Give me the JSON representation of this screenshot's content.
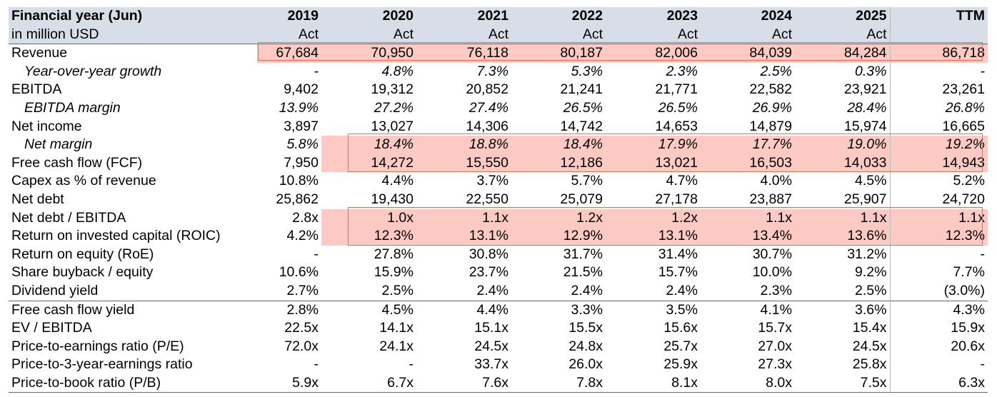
{
  "header": {
    "title": "Financial year (Jun)",
    "subtitle": "in million USD",
    "years": [
      "2019",
      "2020",
      "2021",
      "2022",
      "2023",
      "2024",
      "2025",
      "TTM"
    ],
    "status": [
      "Act",
      "Act",
      "Act",
      "Act",
      "Act",
      "Act",
      "Act",
      ""
    ]
  },
  "rows": [
    {
      "label": "Revenue",
      "values": [
        "67,684",
        "70,950",
        "76,118",
        "80,187",
        "82,006",
        "84,039",
        "84,284",
        "86,718"
      ]
    },
    {
      "label": "Year-over-year growth",
      "values": [
        "-",
        "4.8%",
        "7.3%",
        "5.3%",
        "2.3%",
        "2.5%",
        "0.3%",
        "-"
      ]
    },
    {
      "label": "EBITDA",
      "values": [
        "9,402",
        "19,312",
        "20,852",
        "21,241",
        "21,771",
        "22,582",
        "23,921",
        "23,261"
      ]
    },
    {
      "label": "EBITDA margin",
      "values": [
        "13.9%",
        "27.2%",
        "27.4%",
        "26.5%",
        "26.5%",
        "26.9%",
        "28.4%",
        "26.8%"
      ]
    },
    {
      "label": "Net income",
      "values": [
        "3,897",
        "13,027",
        "14,306",
        "14,742",
        "14,653",
        "14,879",
        "15,974",
        "16,665"
      ]
    },
    {
      "label": "Net margin",
      "values": [
        "5.8%",
        "18.4%",
        "18.8%",
        "18.4%",
        "17.9%",
        "17.7%",
        "19.0%",
        "19.2%"
      ]
    },
    {
      "label": "Free cash flow (FCF)",
      "values": [
        "7,950",
        "14,272",
        "15,550",
        "12,186",
        "13,021",
        "16,503",
        "14,033",
        "14,943"
      ]
    },
    {
      "label": "Capex as % of revenue",
      "values": [
        "10.8%",
        "4.4%",
        "3.7%",
        "5.7%",
        "4.7%",
        "4.0%",
        "4.5%",
        "5.2%"
      ]
    },
    {
      "label": "Net debt",
      "values": [
        "25,862",
        "19,430",
        "22,550",
        "25,079",
        "27,178",
        "23,887",
        "25,907",
        "24,720"
      ]
    },
    {
      "label": "Net debt / EBITDA",
      "values": [
        "2.8x",
        "1.0x",
        "1.1x",
        "1.2x",
        "1.2x",
        "1.1x",
        "1.1x",
        "1.1x"
      ]
    },
    {
      "label": "Return on invested capital (ROIC)",
      "values": [
        "4.2%",
        "12.3%",
        "13.1%",
        "12.9%",
        "13.1%",
        "13.4%",
        "13.6%",
        "12.3%"
      ]
    },
    {
      "label": "Return on equity (RoE)",
      "values": [
        "-",
        "27.8%",
        "30.8%",
        "31.7%",
        "31.4%",
        "30.7%",
        "31.2%",
        "-"
      ]
    },
    {
      "label": "Share buyback / equity",
      "values": [
        "10.6%",
        "15.9%",
        "23.7%",
        "21.5%",
        "15.7%",
        "10.0%",
        "9.2%",
        "7.7%"
      ]
    },
    {
      "label": "Dividend yield",
      "values": [
        "2.7%",
        "2.5%",
        "2.4%",
        "2.4%",
        "2.4%",
        "2.3%",
        "2.5%",
        "(3.0%)"
      ]
    },
    {
      "label": "Free cash flow yield",
      "values": [
        "2.8%",
        "4.5%",
        "4.4%",
        "3.3%",
        "3.5%",
        "4.1%",
        "3.6%",
        "4.3%"
      ]
    },
    {
      "label": "EV / EBITDA",
      "values": [
        "22.5x",
        "14.1x",
        "15.1x",
        "15.5x",
        "15.6x",
        "15.7x",
        "15.4x",
        "15.9x"
      ]
    },
    {
      "label": "Price-to-earnings ratio (P/E)",
      "values": [
        "72.0x",
        "24.1x",
        "24.5x",
        "24.8x",
        "25.7x",
        "27.0x",
        "24.5x",
        "20.6x"
      ]
    },
    {
      "label": "Price-to-3-year-earnings ratio",
      "values": [
        "-",
        "-",
        "33.7x",
        "26.0x",
        "25.9x",
        "27.3x",
        "25.8x",
        "-"
      ]
    },
    {
      "label": "Price-to-book ratio (P/B)",
      "values": [
        "5.9x",
        "6.7x",
        "7.6x",
        "7.8x",
        "8.1x",
        "8.0x",
        "7.5x",
        "6.3x"
      ]
    }
  ],
  "highlight_color": "#fcc9c3",
  "highlight_border_color": "#e8694f"
}
